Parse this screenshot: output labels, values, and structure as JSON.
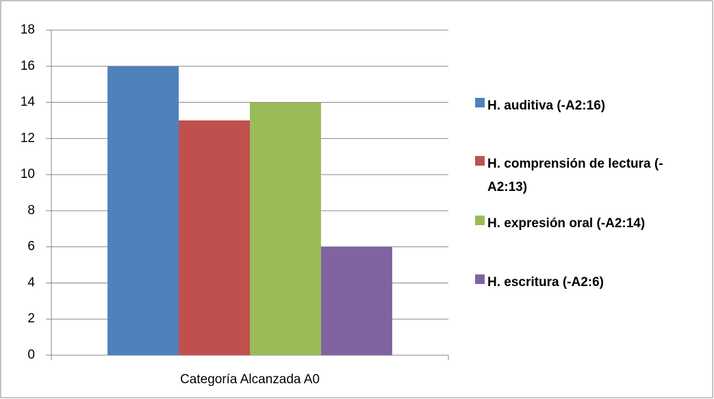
{
  "chart_data": {
    "type": "bar",
    "categories": [
      "Categoría Alcanzada A0"
    ],
    "series": [
      {
        "name": "H. auditiva (-A2:16)",
        "color": "#4f81bd",
        "values": [
          16
        ]
      },
      {
        "name": "H. comprensión de lectura (-A2:13)",
        "color": "#c0504d",
        "values": [
          13
        ]
      },
      {
        "name": "H. expresión oral (-A2:14)",
        "color": "#9bbb59",
        "values": [
          14
        ]
      },
      {
        "name": "H. escritura (-A2:6)",
        "color": "#8064a2",
        "values": [
          6
        ]
      }
    ],
    "ylim": [
      0,
      18
    ],
    "yticks": [
      0,
      2,
      4,
      6,
      8,
      10,
      12,
      14,
      16,
      18
    ],
    "grid": true,
    "legend": "right"
  }
}
